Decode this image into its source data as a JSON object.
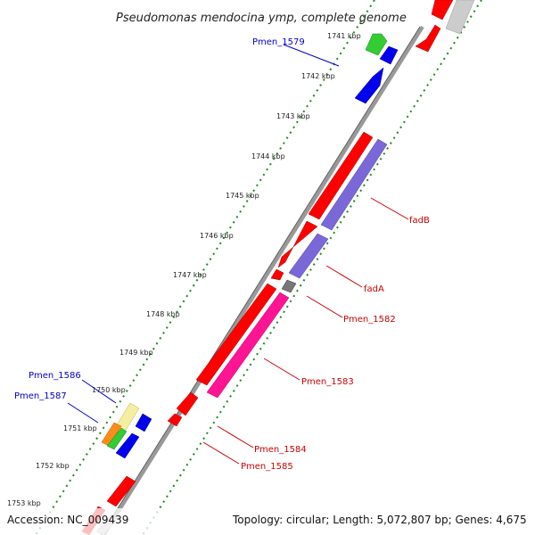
{
  "title": "Pseudomonas mendocina ymp, complete genome",
  "footer": {
    "accession": "Accession: NC_009439",
    "topology": "Topology: circular; Length: 5,072,807 bp; Genes: 4,675"
  },
  "ticks": [
    "1741 kbp",
    "1742 kbp",
    "1743 kbp",
    "1744 kbp",
    "1745 kbp",
    "1746 kbp",
    "1747 kbp",
    "1748 kbp",
    "1749 kbp",
    "1750 kbp",
    "1751 kbp",
    "1752 kbp",
    "1753 kbp"
  ],
  "labels": {
    "pmen_1579": "Pmen_1579",
    "pmen_1586": "Pmen_1586",
    "pmen_1587": "Pmen_1587",
    "fadB": "fadB",
    "fadA": "fadA",
    "pmen_1582": "Pmen_1582",
    "pmen_1583": "Pmen_1583",
    "pmen_1584": "Pmen_1584",
    "pmen_1585": "Pmen_1585"
  },
  "colors": {
    "red_feature": "#ff0000",
    "purple_feature": "#7b68d8",
    "pink_feature": "#ff1493",
    "blue_feature": "#0000ee",
    "green_feature": "#33cc33",
    "yellow_feature": "#f5eea0",
    "orange_feature": "#ff8c1a",
    "gray_feature": "#777777",
    "backbone": "#888888",
    "tick_green": "#1a8a1a",
    "label_red": "#cc0000",
    "label_blue": "#0000cc"
  }
}
